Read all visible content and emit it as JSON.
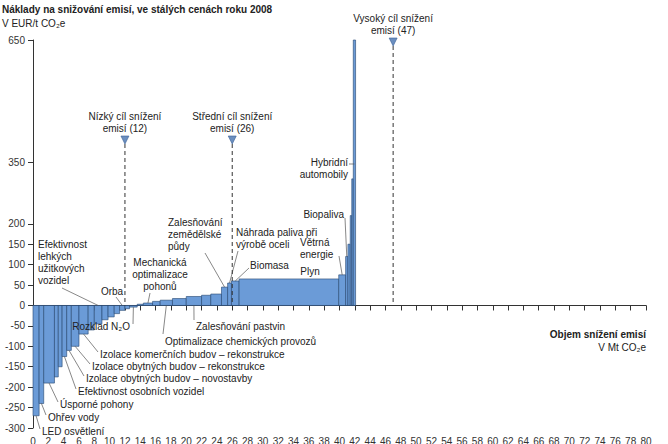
{
  "chart_data": {
    "type": "bar",
    "title": "Náklady na snižování emisí, ve stálých cenách roku 2008",
    "ylabel": "V EUR/t CO₂e",
    "xlabel": "Objem snížení emisí",
    "xunit": "V Mt CO₂e",
    "labels": [
      "LED osvětlení",
      "Ohřev vody",
      "Úsporné pohony",
      null,
      null,
      "Efektivnost osobních vozidel",
      "Izolace obytných budov – novostavby",
      "Izolace obytných budov – rekonstrukce",
      "Izolace komerčních budov – rekonstrukce",
      null,
      "Efektivnost\nlehkých\nužitkových\nvozidel",
      null,
      null,
      null,
      "Orba",
      null,
      "Rozklad N₂O",
      null,
      "Mechanická\noptimalizace\npohonů",
      null,
      "Optimalizace chemických provozů",
      null,
      "Zalesňování pastvin",
      null,
      null,
      "Zalesňování\nzemědělské\npůdy",
      "Náhrada paliva při\nvýrobě oceli",
      "Biomasa",
      "Plyn",
      "Větrná\nenergie",
      "Biopaliva",
      null,
      null,
      null,
      "Hybridní\nautomobily"
    ],
    "widths": [
      0.8,
      0.6,
      1.4,
      0.5,
      0.5,
      0.6,
      0.6,
      1.0,
      1.2,
      0.8,
      1.0,
      0.8,
      0.8,
      0.7,
      0.7,
      0.6,
      1.0,
      0.8,
      1.2,
      1.0,
      1.6,
      1.8,
      2.0,
      1.2,
      1.4,
      0.8,
      0.5,
      1.0,
      13.0,
      0.9,
      0.3,
      0.3,
      0.2,
      0.2,
      0.3
    ],
    "values": [
      -270,
      -240,
      -190,
      -175,
      -150,
      -125,
      -110,
      -100,
      -70,
      -60,
      -45,
      -35,
      -28,
      -20,
      -12,
      -8,
      -4,
      3,
      6,
      10,
      13,
      17,
      22,
      25,
      28,
      45,
      55,
      60,
      65,
      75,
      120,
      150,
      220,
      310,
      650
    ],
    "color": "#6b9bd7",
    "xlim": [
      0,
      80
    ],
    "xticks": [
      0,
      2,
      4,
      6,
      8,
      10,
      12,
      14,
      16,
      18,
      20,
      22,
      24,
      26,
      28,
      30,
      32,
      34,
      36,
      38,
      40,
      42,
      44,
      46,
      48,
      50,
      52,
      54,
      56,
      58,
      60,
      62,
      64,
      66,
      68,
      70,
      72,
      74,
      76,
      78,
      80
    ],
    "ylim": [
      -300,
      650
    ],
    "yticks": [
      -300,
      -250,
      -200,
      -150,
      -100,
      -50,
      0,
      50,
      100,
      150,
      200,
      350,
      650
    ],
    "grid": false,
    "targets": [
      {
        "x": 12,
        "label": "Nízký cíl snížení\nemisí (12)"
      },
      {
        "x": 26,
        "label": "Střední cíl snížení\nemisí (26)"
      },
      {
        "x": 47,
        "label": "Vysoký cíl snížení\nemisí (47)"
      }
    ]
  }
}
